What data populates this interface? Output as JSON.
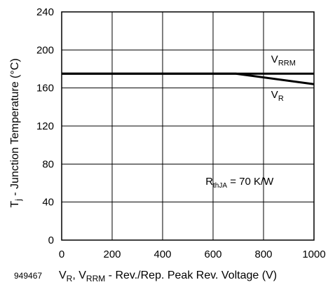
{
  "figure_id": "949467",
  "chart_data": {
    "type": "line",
    "title": "",
    "xlabel": {
      "main": "V",
      "parts": [
        {
          "text": "V",
          "sub": "R"
        },
        {
          "text": ", V",
          "sub": "RRM"
        },
        {
          "text": " - Rev./Rep. Peak Rev. Voltage (V)",
          "sub": ""
        }
      ]
    },
    "ylabel": {
      "parts": [
        {
          "text": "T",
          "sub": "j"
        },
        {
          "text": " - Junction Temperature (°C)",
          "sub": ""
        }
      ]
    },
    "xlim": [
      0,
      1000
    ],
    "ylim": [
      0,
      240
    ],
    "xticks": [
      0,
      200,
      400,
      600,
      800,
      1000
    ],
    "yticks": [
      0,
      40,
      80,
      120,
      160,
      200,
      240
    ],
    "grid": true,
    "series": [
      {
        "name": "V_RRM",
        "label_parts": [
          {
            "text": "V",
            "sub": "RRM"
          }
        ],
        "color": "#000000",
        "x": [
          0,
          1000
        ],
        "y": [
          175,
          175
        ]
      },
      {
        "name": "V_R",
        "label_parts": [
          {
            "text": "V",
            "sub": "R"
          }
        ],
        "color": "#000000",
        "x": [
          0,
          690,
          1000
        ],
        "y": [
          175,
          175,
          164
        ]
      }
    ],
    "annotations": [
      {
        "label_parts": [
          {
            "text": "R",
            "sub": "thJA"
          },
          {
            "text": " = 70 K/W",
            "sub": ""
          }
        ]
      }
    ]
  }
}
